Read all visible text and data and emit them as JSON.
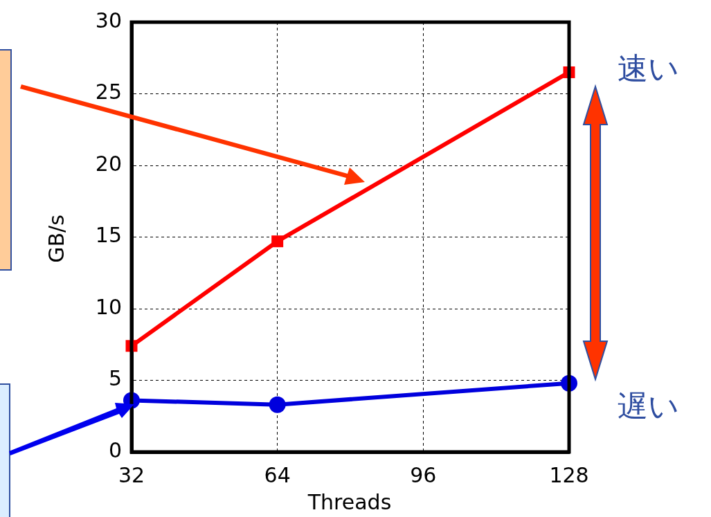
{
  "chart_data": {
    "type": "line",
    "xlabel": "Threads",
    "ylabel": "GB/s",
    "x": [
      32,
      64,
      128
    ],
    "series": [
      {
        "color": "#ff0000",
        "marker": "square",
        "values": [
          7.4,
          14.7,
          26.5
        ]
      },
      {
        "color": "#0000dd",
        "marker": "circle",
        "values": [
          3.6,
          3.3,
          4.8
        ]
      }
    ],
    "xlim": [
      32,
      128
    ],
    "xticks": [
      32,
      64,
      96,
      128
    ],
    "ylim": [
      0,
      30
    ],
    "yticks": [
      0,
      5,
      10,
      15,
      20,
      25,
      30
    ],
    "grid": true,
    "legend": false,
    "line_style": "solid",
    "annotations": [
      "速い",
      "遅い"
    ]
  }
}
